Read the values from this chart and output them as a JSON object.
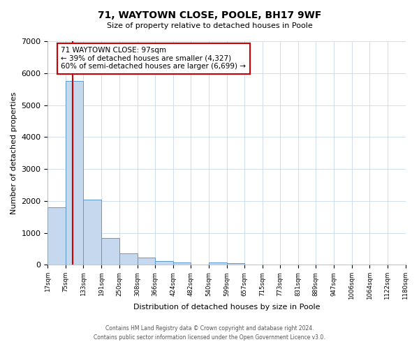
{
  "title": "71, WAYTOWN CLOSE, POOLE, BH17 9WF",
  "subtitle": "Size of property relative to detached houses in Poole",
  "xlabel": "Distribution of detached houses by size in Poole",
  "ylabel": "Number of detached properties",
  "bin_edges": [
    17,
    75,
    133,
    191,
    250,
    308,
    366,
    424,
    482,
    540,
    599,
    657,
    715,
    773,
    831,
    889,
    947,
    1006,
    1064,
    1122,
    1180
  ],
  "bin_labels": [
    "17sqm",
    "75sqm",
    "133sqm",
    "191sqm",
    "250sqm",
    "308sqm",
    "366sqm",
    "424sqm",
    "482sqm",
    "540sqm",
    "599sqm",
    "657sqm",
    "715sqm",
    "773sqm",
    "831sqm",
    "889sqm",
    "947sqm",
    "1006sqm",
    "1064sqm",
    "1122sqm",
    "1180sqm"
  ],
  "counts": [
    1800,
    5750,
    2050,
    840,
    360,
    220,
    110,
    65,
    0,
    70,
    55,
    0,
    0,
    0,
    0,
    0,
    0,
    0,
    0,
    0
  ],
  "bar_color": "#c5d8ee",
  "bar_edge_color": "#5b9bd5",
  "vline_color": "#cc0000",
  "vline_x": 97,
  "annotation_line1": "71 WAYTOWN CLOSE: 97sqm",
  "annotation_line2": "← 39% of detached houses are smaller (4,327)",
  "annotation_line3": "60% of semi-detached houses are larger (6,699) →",
  "annotation_box_color": "#ffffff",
  "annotation_box_edge_color": "#cc0000",
  "ylim": [
    0,
    7000
  ],
  "yticks": [
    0,
    1000,
    2000,
    3000,
    4000,
    5000,
    6000,
    7000
  ],
  "footer_line1": "Contains HM Land Registry data © Crown copyright and database right 2024.",
  "footer_line2": "Contains public sector information licensed under the Open Government Licence v3.0.",
  "background_color": "#ffffff",
  "grid_color": "#c8d8ec"
}
